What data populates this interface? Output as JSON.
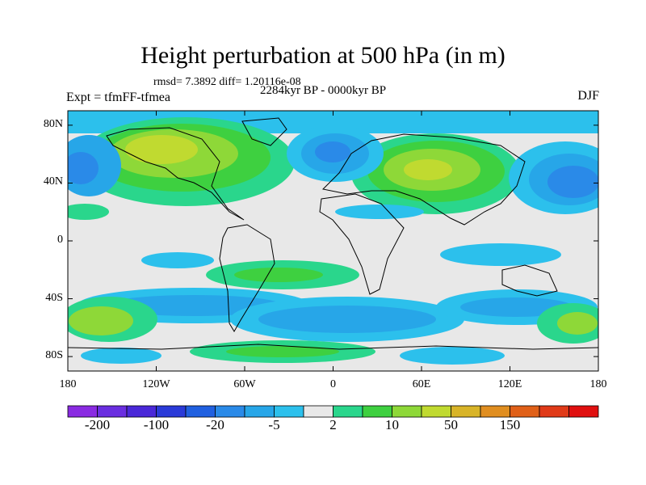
{
  "title": "Height perturbation at 500 hPa (in m)",
  "stats": "rmsd= 7.3892 diff= 1.20116e-08",
  "period": "2284kyr BP - 0000kyr BP",
  "experiment": "Expt = tfmFF-tfmea",
  "season": "DJF",
  "lat_ticks": [
    {
      "value": 80,
      "label": "80N"
    },
    {
      "value": 40,
      "label": "40N"
    },
    {
      "value": 0,
      "label": "0"
    },
    {
      "value": -40,
      "label": "40S"
    },
    {
      "value": -80,
      "label": "80S"
    }
  ],
  "lon_ticks": [
    {
      "value": -180,
      "label": "180"
    },
    {
      "value": -120,
      "label": "120W"
    },
    {
      "value": -60,
      "label": "60W"
    },
    {
      "value": 0,
      "label": "0"
    },
    {
      "value": 60,
      "label": "60E"
    },
    {
      "value": 120,
      "label": "120E"
    },
    {
      "value": 180,
      "label": "180"
    }
  ],
  "colorbar": {
    "colors": [
      "#8a2be2",
      "#6a2ee0",
      "#4a28d8",
      "#2a3ad8",
      "#2060e0",
      "#2a8ae8",
      "#27a6e8",
      "#2cc0ec",
      "#e8e8e8",
      "#2ad68c",
      "#3ed040",
      "#8ed838",
      "#c0da30",
      "#d8b428",
      "#e08e20",
      "#e06018",
      "#e03a18",
      "#e01010"
    ],
    "labels": [
      {
        "boundary": 1,
        "text": "-200"
      },
      {
        "boundary": 3,
        "text": "-100"
      },
      {
        "boundary": 5,
        "text": "-20"
      },
      {
        "boundary": 7,
        "text": "-5"
      },
      {
        "boundary": 9,
        "text": "2"
      },
      {
        "boundary": 11,
        "text": "10"
      },
      {
        "boundary": 13,
        "text": "50"
      },
      {
        "boundary": 15,
        "text": "150"
      }
    ]
  }
}
